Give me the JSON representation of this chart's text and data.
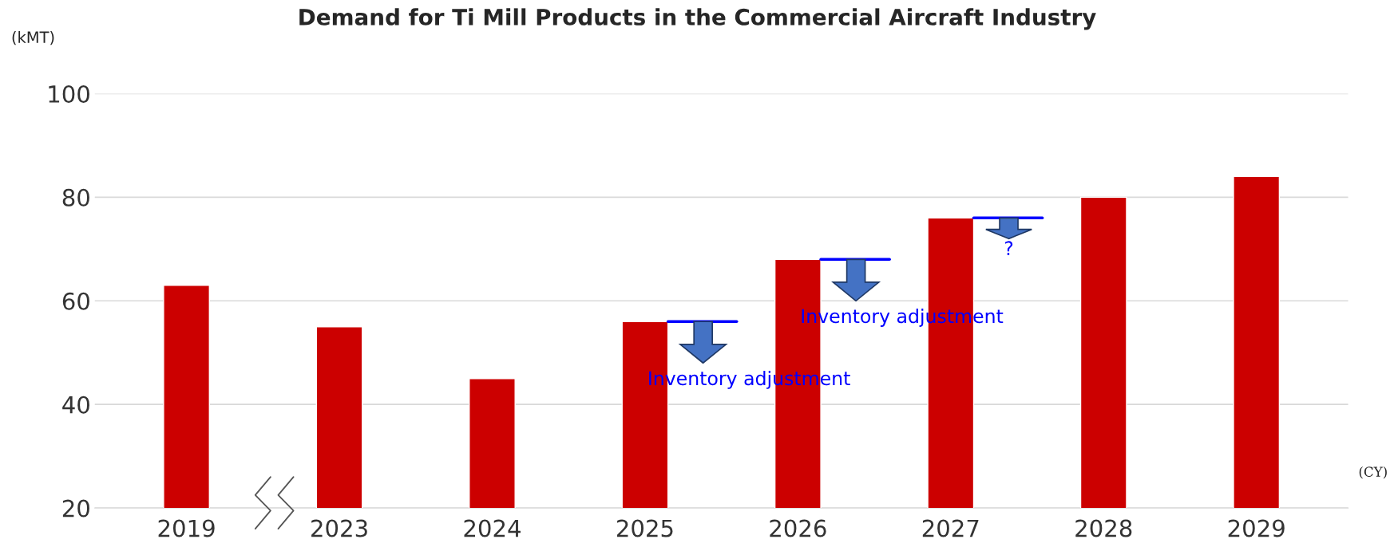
{
  "chart_data": {
    "type": "bar",
    "title": "Demand for Ti Mill Products in the Commercial Aircraft Industry",
    "ylabel": "(kMT)",
    "xlabel": "(CY)",
    "categories": [
      "2019",
      "2023",
      "2024",
      "2025",
      "2026",
      "2027",
      "2028",
      "2029"
    ],
    "values": [
      63,
      55,
      45,
      56,
      68,
      76,
      80,
      84
    ],
    "color": "#cc0000",
    "ylim": [
      20,
      100
    ],
    "yticks": [
      20,
      40,
      60,
      80,
      100
    ],
    "grid": "y",
    "annotations": [
      {
        "text": "Inventory adjustment",
        "x": "2025",
        "y": 56
      },
      {
        "text": "Inventory adjustment",
        "x": "2026",
        "y": 68
      },
      "?"
    ]
  }
}
